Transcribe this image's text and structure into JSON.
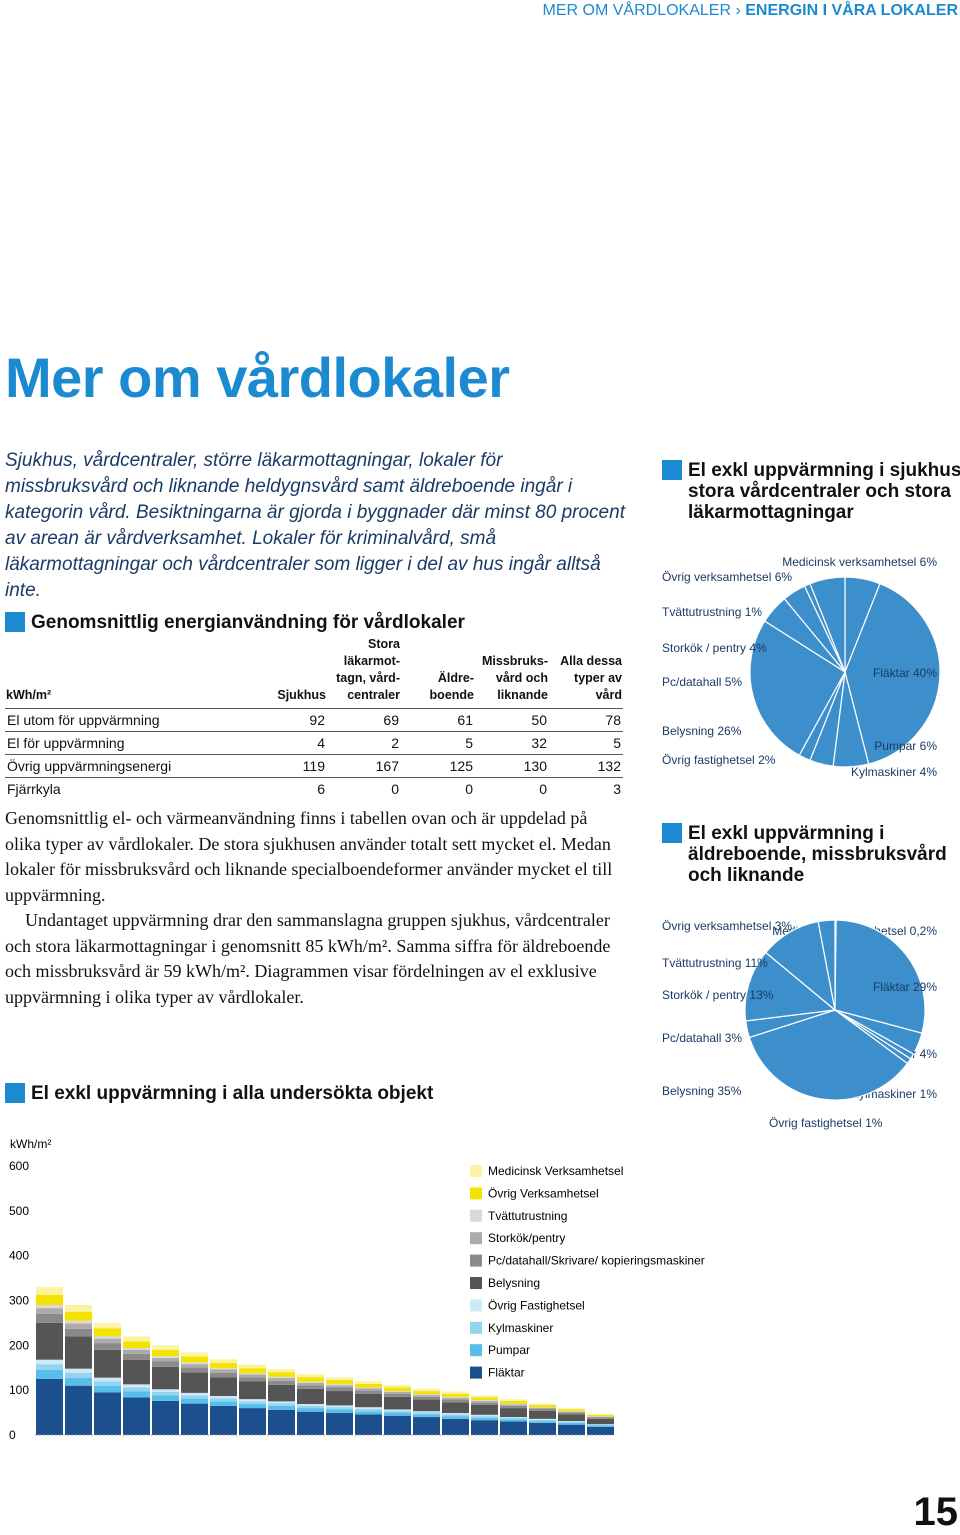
{
  "header": {
    "section": "MER OM VÅRDLOKALER",
    "separator": "›",
    "current": "ENERGIN I VÅRA LOKALER"
  },
  "title": "Mer om vårdlokaler",
  "intro": "Sjukhus, vårdcentraler, större läkarmottagningar, lokaler för missbruksvård och liknande heldygnsvård samt äldreboende ingår i kategorin vård. Besiktningarna är gjorda i byggnader där minst 80 procent av arean är vårdverksamhet. Lokaler för kriminalvård, små läkarmottagningar och vårdcentraler som ligger i del av hus ingår alltså inte.",
  "table": {
    "title": "Genomsnittlig energianvändning för vårdlokaler",
    "columns": [
      "kWh/m²",
      "Sjukhus",
      "Stora läkarmot­tagn, vård­centraler",
      "Äldre­boende",
      "Miss­bruks­vård och liknande",
      "Alla dessa typer av vård"
    ],
    "rows": [
      [
        "El utom för uppvärmning",
        92,
        69,
        61,
        50,
        78
      ],
      [
        "El för uppvärmning",
        4,
        2,
        5,
        32,
        5
      ],
      [
        "Övrig uppvärmningsenergi",
        119,
        167,
        125,
        130,
        132
      ],
      [
        "Fjärrkyla",
        6,
        0,
        0,
        0,
        3
      ]
    ]
  },
  "body": [
    "Genomsnittlig el- och värmeanvändning finns i tabellen ovan och är uppdelad på olika typer av vårdlokaler. De stora sjukhusen använder totalt sett mycket el. Medan lokaler för missbruksvård och liknande specialboendeformer använder mycket el till uppvärmning.",
    "Undantaget uppvärmning drar den sammanslagna gruppen sjukhus, vårdcentraler och stora läkarmottagningar i genomsnitt 85 kWh/m². Samma siffra för äldreboende och missbruksvård är 59 kWh/m². Diagrammen visar fördelningen av el exklusive uppvärmning i olika typer av vårdlokaler."
  ],
  "page_number": "15",
  "chart_data": [
    {
      "type": "bar",
      "stacked": true,
      "title": "El exkl uppvärmning i alla undersökta objekt",
      "ylabel": "kWh/m²",
      "ylim": [
        0,
        600
      ],
      "yticks": [
        0,
        100,
        200,
        300,
        400,
        500,
        600
      ],
      "series": [
        {
          "name": "Fläktar",
          "color": "#1c4f8e",
          "values": [
            125,
            110,
            95,
            84,
            76,
            70,
            65,
            60,
            56,
            52,
            49,
            46,
            43,
            40,
            36,
            33,
            30,
            27,
            23,
            18
          ]
        },
        {
          "name": "Pumpar",
          "color": "#57bde9",
          "values": [
            20,
            17,
            15,
            13,
            12,
            11,
            10,
            9,
            9,
            8,
            8,
            7,
            7,
            6,
            6,
            5,
            5,
            4,
            4,
            3
          ]
        },
        {
          "name": "Kylmaskiner",
          "color": "#93d4f1",
          "values": [
            13,
            12,
            10,
            9,
            8,
            7,
            7,
            6,
            6,
            5,
            5,
            5,
            4,
            4,
            4,
            4,
            3,
            3,
            2,
            2
          ]
        },
        {
          "name": "Övrig Fastighetsel",
          "color": "#cde9f7",
          "values": [
            10,
            9,
            8,
            7,
            6,
            6,
            5,
            5,
            4,
            4,
            4,
            4,
            3,
            3,
            3,
            3,
            2,
            2,
            2,
            1
          ]
        },
        {
          "name": "Belysning",
          "color": "#555555",
          "values": [
            82,
            72,
            62,
            55,
            50,
            46,
            42,
            40,
            37,
            34,
            32,
            30,
            28,
            26,
            24,
            22,
            20,
            18,
            15,
            12
          ]
        },
        {
          "name": "Pc/datahall/Skrivare/ kopieringsmaskiner",
          "color": "#8a8a8a",
          "values": [
            20,
            17,
            15,
            13,
            12,
            11,
            10,
            9,
            9,
            8,
            8,
            7,
            7,
            6,
            6,
            5,
            5,
            4,
            4,
            3
          ]
        },
        {
          "name": "Storkök/pentry",
          "color": "#ababab",
          "values": [
            13,
            12,
            10,
            9,
            8,
            7,
            7,
            6,
            6,
            5,
            5,
            5,
            4,
            4,
            4,
            4,
            3,
            3,
            2,
            2
          ]
        },
        {
          "name": "Tvättutrustning",
          "color": "#d9d9d9",
          "values": [
            7,
            6,
            5,
            4,
            4,
            4,
            3,
            3,
            3,
            3,
            3,
            2,
            2,
            2,
            2,
            2,
            2,
            1,
            1,
            1
          ]
        },
        {
          "name": "Övrig Verksamhetsel",
          "color": "#f4e200",
          "values": [
            23,
            20,
            18,
            15,
            14,
            13,
            12,
            11,
            10,
            10,
            9,
            8,
            8,
            7,
            7,
            6,
            6,
            5,
            4,
            3
          ]
        },
        {
          "name": "Medicinsk Verksamhetsel",
          "color": "#fbf3a2",
          "values": [
            17,
            15,
            12,
            11,
            10,
            9,
            8,
            8,
            7,
            7,
            6,
            6,
            6,
            5,
            5,
            4,
            4,
            3,
            3,
            3
          ]
        }
      ]
    },
    {
      "type": "pie",
      "title": "El exkl uppvärmning i sjukhus, stora vårdcentraler och stora läkarmottagningar",
      "categories": [
        "Medicinsk verksamhetsel",
        "Fläktar",
        "Pumpar",
        "Kylmaskiner",
        "Övrig fastighetsel",
        "Belysning",
        "Pc/datahall",
        "Storkök / pentry",
        "Tvättutrustning",
        "Övrig verksamhetsel"
      ],
      "values": [
        6,
        40,
        6,
        4,
        2,
        26,
        5,
        4,
        1,
        6
      ],
      "value_labels": [
        "6%",
        "40%",
        "6%",
        "4%",
        "2%",
        "26%",
        "5%",
        "4%",
        "1%",
        "6%"
      ],
      "color": "#3d8fcc"
    },
    {
      "type": "pie",
      "title": "El exkl uppvärmning i äldreboende, missbruksvård och liknande",
      "categories": [
        "Medicinsk verksamhetsel",
        "Fläktar",
        "Pumpar",
        "Kylmaskiner",
        "Övrig fastighetsel",
        "Belysning",
        "Pc/datahall",
        "Storkök / pentry",
        "Tvättutrustning",
        "Övrig verksamhetsel"
      ],
      "values": [
        0.2,
        29,
        4,
        1,
        1,
        35,
        3,
        13,
        11,
        3
      ],
      "value_labels": [
        "0,2%",
        "29%",
        "4%",
        "1%",
        "1%",
        "35%",
        "3%",
        "13%",
        "11%",
        "3%"
      ],
      "color": "#3d8fcc"
    }
  ]
}
